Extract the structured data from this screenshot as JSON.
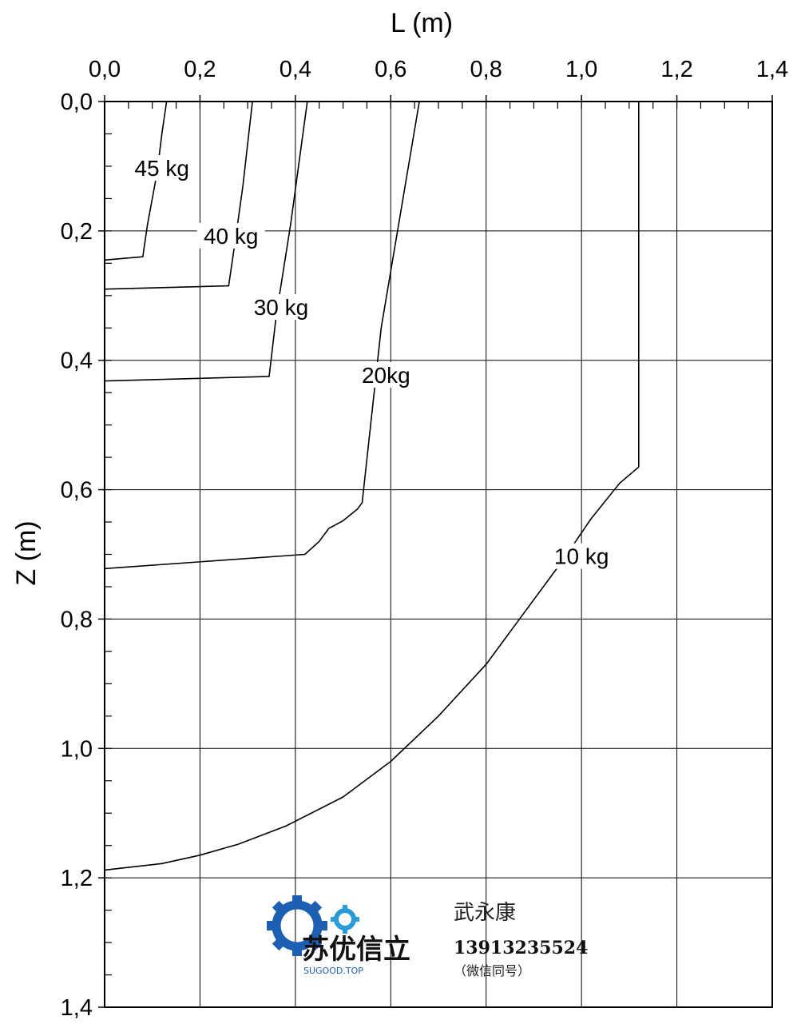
{
  "chart_data": {
    "type": "line",
    "title": "",
    "xlabel": "L (m)",
    "ylabel": "Z (m)",
    "xlim": [
      0,
      1.4
    ],
    "ylim": [
      1.4,
      0
    ],
    "x_axis_position": "top",
    "y_axis_inverted": true,
    "grid": true,
    "x_ticks": [
      "0,0",
      "0,2",
      "0,4",
      "0,6",
      "0,8",
      "1,0",
      "1,2",
      "1,4"
    ],
    "y_ticks": [
      "0,0",
      "0,2",
      "0,4",
      "0,6",
      "0,8",
      "1,0",
      "1,2",
      "1,4"
    ],
    "series": [
      {
        "name": "45 kg",
        "label": "45 kg",
        "label_at": [
          0.12,
          0.11
        ],
        "x": [
          0,
          0.08,
          0.09,
          0.1,
          0.11,
          0.12,
          0.13
        ],
        "y": [
          0.245,
          0.24,
          0.19,
          0.15,
          0.11,
          0.05,
          0.0
        ]
      },
      {
        "name": "40 kg",
        "label": "40 kg",
        "label_at": [
          0.265,
          0.215
        ],
        "x": [
          0,
          0.26,
          0.275,
          0.29,
          0.31
        ],
        "y": [
          0.29,
          0.285,
          0.21,
          0.13,
          0.0
        ]
      },
      {
        "name": "30 kg",
        "label": "30 kg",
        "label_at": [
          0.37,
          0.325
        ],
        "x": [
          0,
          0.345,
          0.36,
          0.39,
          0.425
        ],
        "y": [
          0.432,
          0.425,
          0.33,
          0.19,
          0.0
        ]
      },
      {
        "name": "20kg",
        "label": "20kg",
        "label_at": [
          0.59,
          0.43
        ],
        "x": [
          0,
          0.42,
          0.45,
          0.47,
          0.5,
          0.53,
          0.54,
          0.58,
          0.66
        ],
        "y": [
          0.722,
          0.7,
          0.68,
          0.66,
          0.648,
          0.63,
          0.62,
          0.35,
          0.0
        ]
      },
      {
        "name": "10 kg",
        "label": "10 kg",
        "label_at": [
          1.0,
          0.71
        ],
        "x": [
          0,
          0.12,
          0.2,
          0.28,
          0.38,
          0.5,
          0.6,
          0.7,
          0.8,
          0.88,
          0.96,
          1.02,
          1.08,
          1.12,
          1.12
        ],
        "y": [
          1.188,
          1.178,
          1.165,
          1.148,
          1.12,
          1.075,
          1.02,
          0.95,
          0.87,
          0.79,
          0.71,
          0.645,
          0.59,
          0.565,
          0.0
        ]
      }
    ]
  },
  "watermark": {
    "brand": "苏优信立",
    "url": "SUGOOD.TOP",
    "name": "武永康",
    "phone": "13913235524",
    "note": "（微信同号）",
    "gear_color": "#1d5fb3",
    "gear_color_2": "#2a9ad8"
  }
}
